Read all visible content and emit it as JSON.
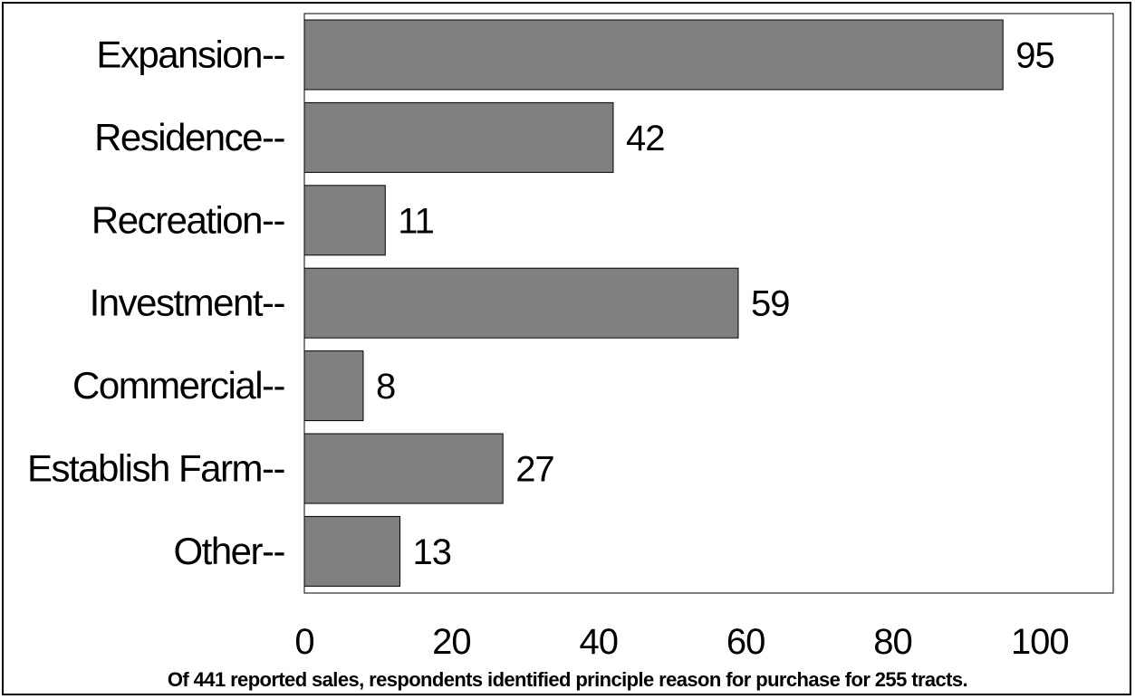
{
  "chart_data": {
    "type": "bar",
    "orientation": "horizontal",
    "categories": [
      "Expansion--",
      "Residence--",
      "Recreation--",
      "Investment--",
      "Commercial--",
      "Establish Farm--",
      "Other--"
    ],
    "values": [
      95,
      42,
      11,
      59,
      8,
      27,
      13
    ],
    "xticks": [
      "0",
      "20",
      "40",
      "60",
      "80",
      "100"
    ],
    "xlim": [
      0,
      110
    ],
    "grid": false,
    "data_labels": true,
    "bar_color": "#808080",
    "note": "Of 441 reported sales, respondents identified principle reason for purchase for 255 tracts."
  }
}
